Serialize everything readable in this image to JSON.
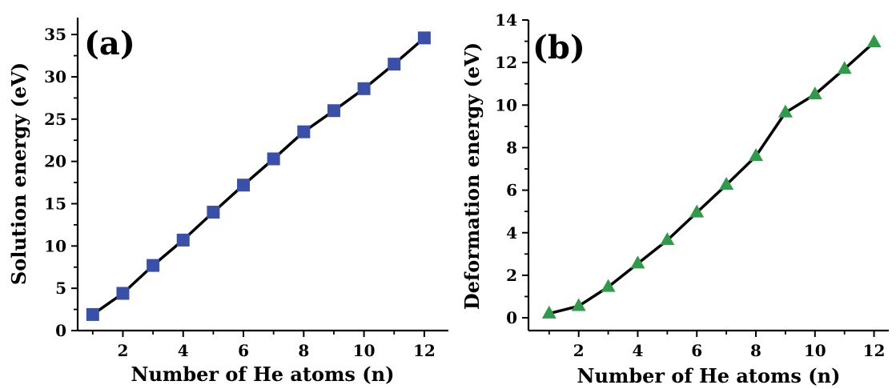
{
  "colors": {
    "panel_a_marker": "#3a50a8",
    "panel_b_marker": "#2e9a4a",
    "line": "#000000",
    "axis": "#000000"
  },
  "chart_data": [
    {
      "type": "line",
      "panel_label": "(a)",
      "title": "",
      "xlabel": "Number of He atoms (n)",
      "ylabel": "Solution energy (eV)",
      "xlim": [
        0.5,
        12.8
      ],
      "ylim": [
        0,
        37
      ],
      "xticks": [
        2,
        4,
        6,
        8,
        10,
        12
      ],
      "yticks": [
        0,
        5,
        10,
        15,
        20,
        25,
        30,
        35
      ],
      "marker": "square",
      "grid": false,
      "series": [
        {
          "x": [
            1,
            2,
            3,
            4,
            5,
            6,
            7,
            8,
            9,
            10,
            11,
            12
          ],
          "y": [
            1.9,
            4.4,
            7.7,
            10.7,
            14.0,
            17.2,
            20.3,
            23.5,
            26.0,
            28.6,
            31.5,
            34.6
          ]
        }
      ]
    },
    {
      "type": "line",
      "panel_label": "(b)",
      "title": "",
      "xlabel": "Number of He atoms (n)",
      "ylabel": "Deformation energy (eV)",
      "xlim": [
        0.3,
        12.5
      ],
      "ylim": [
        -0.6,
        14
      ],
      "xticks": [
        2,
        4,
        6,
        8,
        10,
        12
      ],
      "yticks": [
        0,
        2,
        4,
        6,
        8,
        10,
        12,
        14
      ],
      "marker": "triangle",
      "grid": false,
      "series": [
        {
          "x": [
            1,
            2,
            3,
            4,
            5,
            6,
            7,
            8,
            9,
            10,
            11,
            12
          ],
          "y": [
            0.2,
            0.55,
            1.45,
            2.55,
            3.65,
            4.95,
            6.25,
            7.6,
            9.65,
            10.5,
            11.7,
            12.95
          ]
        }
      ]
    }
  ]
}
